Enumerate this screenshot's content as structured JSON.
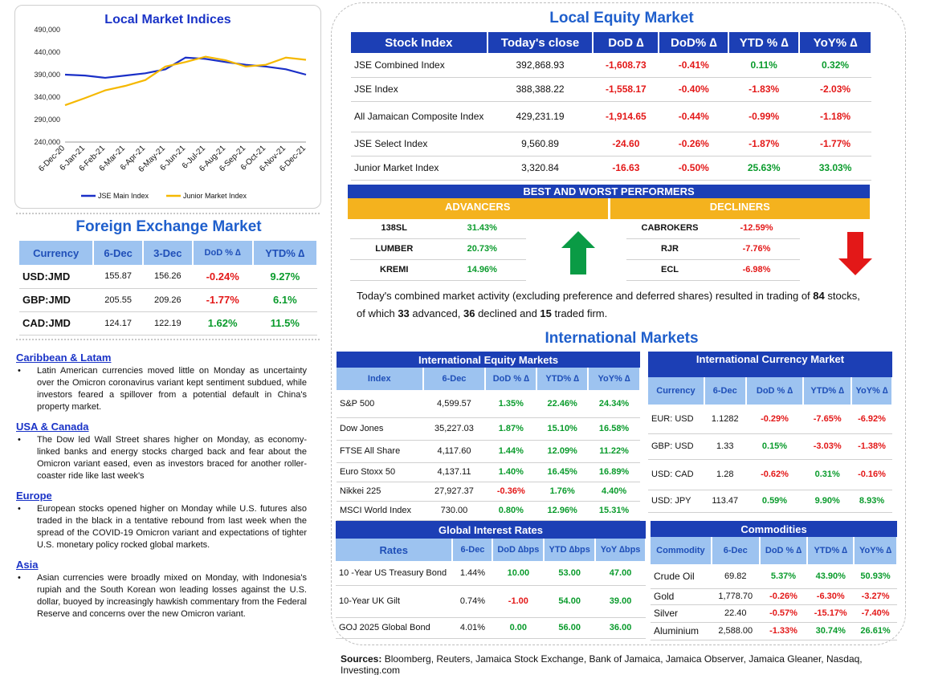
{
  "local_market_indices": {
    "title": "Local Market Indices",
    "legend": [
      "JSE Main Index",
      "Junior Market Index"
    ],
    "colors": {
      "main": "#1a2fc7",
      "junior": "#f5b800"
    }
  },
  "chart_data": {
    "type": "line",
    "title": "Local Market Indices",
    "x": [
      "6-Dec-20",
      "6-Jan-21",
      "6-Feb-21",
      "6-Mar-21",
      "6-Apr-21",
      "6-May-21",
      "6-Jun-21",
      "6-Jul-21",
      "6-Aug-21",
      "6-Sep-21",
      "6-Oct-21",
      "6-Nov-21",
      "6-Dec-21"
    ],
    "yticks": [
      "490,000",
      "440,000",
      "390,000",
      "340,000",
      "290,000",
      "240,000"
    ],
    "ylim": [
      240000,
      490000
    ],
    "grid": false,
    "legend_position": "bottom",
    "series": [
      {
        "name": "JSE Main Index",
        "values": [
          390000,
          388000,
          383000,
          388000,
          393000,
          402000,
          428000,
          425000,
          418000,
          412000,
          408000,
          402000,
          390000
        ]
      },
      {
        "name": "Junior Market Index",
        "values": [
          322000,
          338000,
          355000,
          365000,
          378000,
          408000,
          418000,
          430000,
          422000,
          408000,
          412000,
          428000,
          423000
        ]
      }
    ]
  },
  "fx": {
    "title": "Foreign Exchange Market",
    "headers": [
      "Currency",
      "6-Dec",
      "3-Dec",
      "DoD % ∆",
      "YTD% ∆"
    ],
    "rows": [
      {
        "cur": "USD:JMD",
        "d6": "155.87",
        "d3": "156.26",
        "dod": "-0.24%",
        "ytd": "9.27%"
      },
      {
        "cur": "GBP:JMD",
        "d6": "205.55",
        "d3": "209.26",
        "dod": "-1.77%",
        "ytd": "6.1%"
      },
      {
        "cur": "CAD:JMD",
        "d6": "124.17",
        "d3": "122.19",
        "dod": "1.62%",
        "ytd": "11.5%"
      }
    ]
  },
  "news": [
    {
      "title": "Caribbean & Latam",
      "text": "Latin American currencies moved little on Monday as uncertainty over the Omicron coronavirus variant kept sentiment subdued, while investors feared a spillover from a potential default in China's property market."
    },
    {
      "title": "USA & Canada",
      "text": "The Dow led Wall Street shares higher on Monday, as economy-linked banks and energy stocks charged back and fear about the Omicron variant eased, even as investors braced for another roller-coaster ride like last week's"
    },
    {
      "title": "Europe",
      "text": "European stocks opened higher on Monday while U.S. futures also traded in the black in a tentative rebound from last week when the spread of the COVID-19 Omicron variant and expectations of tighter U.S. monetary policy rocked global markets."
    },
    {
      "title": "Asia",
      "text": "Asian currencies were broadly mixed on Monday, with Indonesia's rupiah and the South Korean won leading losses against the U.S. dollar, buoyed by increasingly hawkish commentary from the Federal Reserve and concerns over the new Omicron variant."
    }
  ],
  "local_equity": {
    "title": "Local Equity Market",
    "headers": [
      "Stock Index",
      "Today's close",
      "DoD ∆",
      "DoD% ∆",
      "YTD % ∆",
      "YoY% ∆"
    ],
    "rows": [
      {
        "name": "JSE Combined Index",
        "close": "392,868.93",
        "dod": "-1,608.73",
        "dodp": "-0.41%",
        "ytd": "0.11%",
        "yoy": "0.32%"
      },
      {
        "name": "JSE Index",
        "close": "388,388.22",
        "dod": "-1,558.17",
        "dodp": "-0.40%",
        "ytd": "-1.83%",
        "yoy": "-2.03%"
      },
      {
        "name": "All Jamaican Composite Index",
        "close": "429,231.19",
        "dod": "-1,914.65",
        "dodp": "-0.44%",
        "ytd": "-0.99%",
        "yoy": "-1.18%"
      },
      {
        "name": "JSE Select Index",
        "close": "9,560.89",
        "dod": "-24.60",
        "dodp": "-0.26%",
        "ytd": "-1.87%",
        "yoy": "-1.77%"
      },
      {
        "name": "Junior Market Index",
        "close": "3,320.84",
        "dod": "-16.63",
        "dodp": "-0.50%",
        "ytd": "25.63%",
        "yoy": "33.03%"
      }
    ]
  },
  "performers": {
    "title": "BEST AND WORST PERFORMERS",
    "advancers_label": "ADVANCERS",
    "decliners_label": "DECLINERS",
    "advancers": [
      {
        "sym": "138SL",
        "pct": "31.43%"
      },
      {
        "sym": "LUMBER",
        "pct": "20.73%"
      },
      {
        "sym": "KREMI",
        "pct": "14.96%"
      }
    ],
    "decliners": [
      {
        "sym": "CABROKERS",
        "pct": "-12.59%"
      },
      {
        "sym": "RJR",
        "pct": "-7.76%"
      },
      {
        "sym": "ECL",
        "pct": "-6.98%"
      }
    ]
  },
  "summary": {
    "p1": "Today's combined market activity (excluding preference and deferred shares) resulted in trading of ",
    "traded": "84",
    "p2": " stocks, of which ",
    "advanced": "33",
    "p3": " advanced, ",
    "declined": "36",
    "p4": " declined and ",
    "firm": "15",
    "p5": " traded firm."
  },
  "intl_title": "International Markets",
  "intl_equity": {
    "title": "International Equity Markets",
    "headers": [
      "Index",
      "6-Dec",
      "DoD % ∆",
      "YTD% ∆",
      "YoY% ∆"
    ],
    "rows": [
      {
        "name": "S&P 500",
        "v": "4,599.57",
        "dod": "1.35%",
        "ytd": "22.46%",
        "yoy": "24.34%"
      },
      {
        "name": "Dow Jones",
        "v": "35,227.03",
        "dod": "1.87%",
        "ytd": "15.10%",
        "yoy": "16.58%"
      },
      {
        "name": "FTSE All Share",
        "v": "4,117.60",
        "dod": "1.44%",
        "ytd": "12.09%",
        "yoy": "11.22%"
      },
      {
        "name": "Euro Stoxx 50",
        "v": "4,137.11",
        "dod": "1.40%",
        "ytd": "16.45%",
        "yoy": "16.89%"
      },
      {
        "name": "Nikkei 225",
        "v": "27,927.37",
        "dod": "-0.36%",
        "ytd": "1.76%",
        "yoy": "4.40%"
      },
      {
        "name": "MSCI World Index",
        "v": "730.00",
        "dod": "0.80%",
        "ytd": "12.96%",
        "yoy": "15.31%"
      }
    ]
  },
  "intl_currency": {
    "title": "International Currency Market",
    "headers": [
      "Currency",
      "6-Dec",
      "DoD % ∆",
      "YTD% ∆",
      "YoY% ∆"
    ],
    "rows": [
      {
        "cur": "EUR: USD",
        "v": "1.1282",
        "dod": "-0.29%",
        "ytd": "-7.65%",
        "yoy": "-6.92%"
      },
      {
        "cur": "GBP: USD",
        "v": "1.33",
        "dod": "0.15%",
        "ytd": "-3.03%",
        "yoy": "-1.38%"
      },
      {
        "cur": "USD: CAD",
        "v": "1.28",
        "dod": "-0.62%",
        "ytd": "0.31%",
        "yoy": "-0.16%"
      },
      {
        "cur": "USD: JPY",
        "v": "113.47",
        "dod": "0.59%",
        "ytd": "9.90%",
        "yoy": "8.93%"
      }
    ]
  },
  "interest": {
    "title": "Global Interest Rates",
    "headers": [
      "Rates",
      "6-Dec",
      "DoD ∆bps",
      "YTD ∆bps",
      "YoY ∆bps"
    ],
    "rows": [
      {
        "name": "10 -Year US Treasury Bond",
        "v": "1.44%",
        "dod": "10.00",
        "ytd": "53.00",
        "yoy": "47.00"
      },
      {
        "name": "10-Year UK Gilt",
        "v": "0.74%",
        "dod": "-1.00",
        "ytd": "54.00",
        "yoy": "39.00"
      },
      {
        "name": "GOJ 2025 Global Bond",
        "v": "4.01%",
        "dod": "0.00",
        "ytd": "56.00",
        "yoy": "36.00"
      }
    ]
  },
  "commodities": {
    "title": "Commodities",
    "headers": [
      "Commodity",
      "6-Dec",
      "DoD % ∆",
      "YTD% ∆",
      "YoY% ∆"
    ],
    "rows": [
      {
        "name": "Crude Oil",
        "v": "69.82",
        "dod": "5.37%",
        "ytd": "43.90%",
        "yoy": "50.93%"
      },
      {
        "name": "Gold",
        "v": "1,778.70",
        "dod": "-0.26%",
        "ytd": "-6.30%",
        "yoy": "-3.27%"
      },
      {
        "name": "Silver",
        "v": "22.40",
        "dod": "-0.57%",
        "ytd": "-15.17%",
        "yoy": "-7.40%"
      },
      {
        "name": "Aluminium",
        "v": "2,588.00",
        "dod": "-1.33%",
        "ytd": "30.74%",
        "yoy": "26.61%"
      }
    ]
  },
  "sources": {
    "label": "Sources:",
    "text": " Bloomberg, Reuters, Jamaica Stock Exchange, Bank of Jamaica, Jamaica Observer, Jamaica Gleaner, Nasdaq, Investing.com"
  },
  "arrows": {
    "up": "up-arrow-icon",
    "down": "down-arrow-icon",
    "up_color": "#0a9b45",
    "down_color": "#e31818"
  }
}
